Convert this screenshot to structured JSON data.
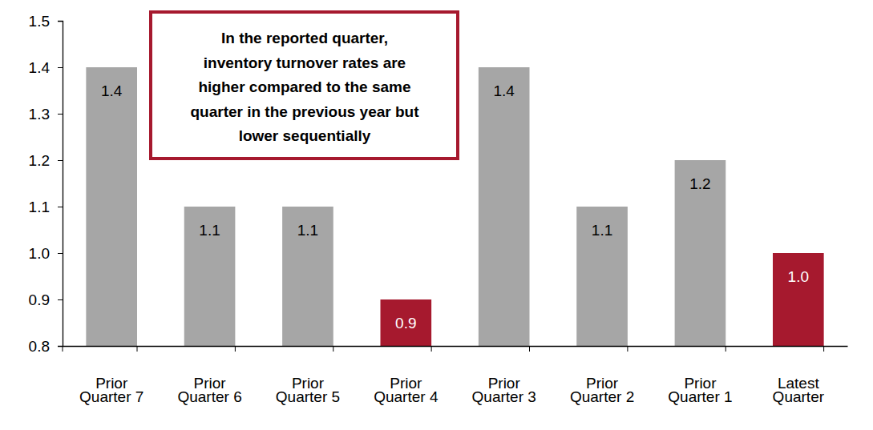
{
  "chart_data": {
    "type": "bar",
    "annotation": [
      "In the reported quarter,",
      "inventory turnover rates are",
      "higher compared to the same",
      "quarter in the previous year but",
      "lower sequentially"
    ],
    "categories": [
      "Prior Quarter 7",
      "Prior Quarter 6",
      "Prior Quarter 5",
      "Prior Quarter 4",
      "Prior Quarter 3",
      "Prior Quarter 2",
      "Prior Quarter 1",
      "Latest Quarter"
    ],
    "values": [
      1.4,
      1.1,
      1.1,
      0.9,
      1.4,
      1.1,
      1.2,
      1
    ],
    "value_labels": [
      "1.4",
      "1.1",
      "1.1",
      "0.9",
      "1.4",
      "1.1",
      "1.2",
      "1.0"
    ],
    "colors": [
      "#a6a6a6",
      "#a6a6a6",
      "#a6a6a6",
      "#a6192e",
      "#a6a6a6",
      "#a6a6a6",
      "#a6a6a6",
      "#a6192e"
    ],
    "data_labels": true,
    "grid": false,
    "ylim": [
      0.8,
      1.5
    ],
    "yticks": [
      0.8,
      0.9,
      {
        "value": 1,
        "label": "1.0"
      },
      1.1,
      1.2,
      1.3,
      1.4,
      1.5
    ]
  }
}
